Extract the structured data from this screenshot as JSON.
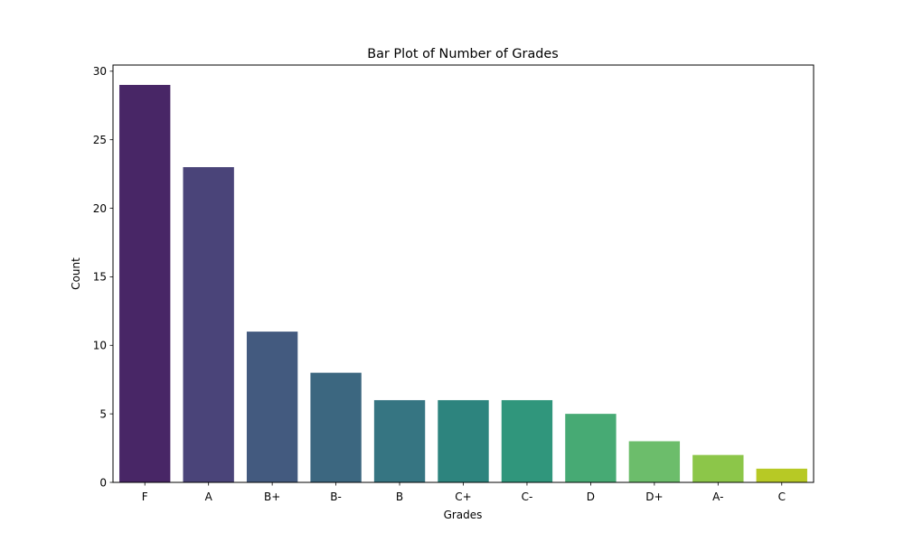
{
  "chart_data": {
    "type": "bar",
    "title": "Bar Plot of Number of Grades",
    "xlabel": "Grades",
    "ylabel": "Count",
    "categories": [
      "F",
      "A",
      "B+",
      "B-",
      "B",
      "C+",
      "C-",
      "D",
      "D+",
      "A-",
      "C"
    ],
    "values": [
      29,
      23,
      11,
      8,
      6,
      6,
      6,
      5,
      3,
      2,
      1
    ],
    "colors": [
      "#482666",
      "#4a4479",
      "#435a7f",
      "#3c6780",
      "#367582",
      "#2d847e",
      "#30967c",
      "#47aa74",
      "#6cbd6b",
      "#8cc649",
      "#b7c925"
    ],
    "ylim": [
      0,
      30.45
    ],
    "yticks": [
      0,
      5,
      10,
      15,
      20,
      25,
      30
    ],
    "grid": false,
    "legend": "none"
  }
}
